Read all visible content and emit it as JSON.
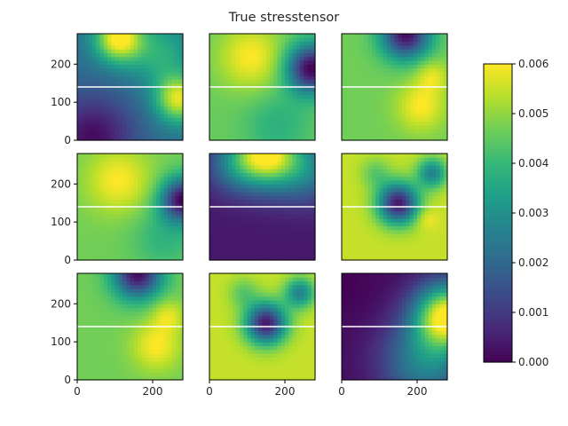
{
  "chart_data": {
    "type": "heatmap",
    "title": "True stresstensor",
    "grid": false,
    "axis_range": [
      0,
      280
    ],
    "axis_ticks": {
      "values": [
        0,
        100,
        200
      ],
      "labels": [
        "0",
        "100",
        "200"
      ]
    },
    "x_tick_values": [
      0,
      200
    ],
    "x_tick_labels": [
      "0",
      "200"
    ],
    "y_tick_values": [
      0,
      100,
      200
    ],
    "y_tick_labels": [
      "0",
      "100",
      "200"
    ],
    "white_line_y": 140,
    "colormap": "viridis",
    "colorbar": {
      "range": [
        0,
        0.006
      ],
      "ticks": [
        0.0,
        0.001,
        0.002,
        0.003,
        0.004,
        0.005,
        0.006
      ],
      "tick_labels": [
        "0.000",
        "0.001",
        "0.002",
        "0.003",
        "0.004",
        "0.005",
        "0.006"
      ],
      "placement": "right"
    },
    "panels": [
      {
        "name": "p11",
        "base": 0.0022,
        "blobs": [
          [
            110,
            270,
            45,
            0.004
          ],
          [
            270,
            110,
            45,
            0.0035
          ],
          [
            220,
            230,
            60,
            0.0015
          ],
          [
            40,
            10,
            80,
            -0.002
          ]
        ]
      },
      {
        "name": "p12",
        "base": 0.0046,
        "blobs": [
          [
            110,
            220,
            60,
            0.0014
          ],
          [
            270,
            190,
            45,
            -0.0046
          ],
          [
            180,
            40,
            60,
            -0.0008
          ]
        ]
      },
      {
        "name": "p13",
        "base": 0.0047,
        "blobs": [
          [
            170,
            280,
            45,
            -0.0045
          ],
          [
            210,
            90,
            45,
            0.0013
          ],
          [
            240,
            170,
            30,
            0.001
          ]
        ]
      },
      {
        "name": "p21",
        "base": 0.0047,
        "blobs": [
          [
            110,
            210,
            60,
            0.0013
          ],
          [
            280,
            160,
            40,
            -0.0046
          ],
          [
            230,
            60,
            60,
            -0.0008
          ]
        ]
      },
      {
        "name": "p22",
        "base": 0.0004,
        "blobs": [
          [
            150,
            280,
            60,
            0.0056
          ],
          [
            60,
            250,
            50,
            0.0015
          ],
          [
            260,
            240,
            60,
            0.002
          ]
        ]
      },
      {
        "name": "p23",
        "base": 0.0055,
        "blobs": [
          [
            150,
            150,
            38,
            -0.0051
          ],
          [
            240,
            230,
            28,
            -0.0028
          ],
          [
            90,
            230,
            28,
            -0.001
          ],
          [
            225,
            110,
            20,
            0.0006
          ]
        ]
      },
      {
        "name": "p31",
        "base": 0.0047,
        "blobs": [
          [
            160,
            280,
            45,
            -0.0045
          ],
          [
            210,
            90,
            45,
            0.0013
          ],
          [
            240,
            170,
            30,
            0.001
          ]
        ]
      },
      {
        "name": "p32",
        "base": 0.0055,
        "blobs": [
          [
            150,
            150,
            38,
            -0.0051
          ],
          [
            240,
            230,
            28,
            -0.0028
          ],
          [
            90,
            230,
            28,
            -0.001
          ]
        ]
      },
      {
        "name": "p33",
        "base": 0.0002,
        "blobs": [
          [
            280,
            170,
            60,
            0.0057
          ],
          [
            220,
            50,
            80,
            0.0025
          ],
          [
            0,
            250,
            60,
            -0.0002
          ]
        ]
      }
    ]
  }
}
